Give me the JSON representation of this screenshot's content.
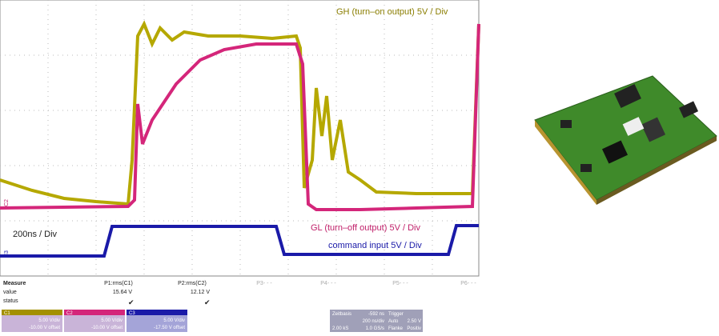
{
  "scope": {
    "labels": {
      "gh": "GH (turn–on output) 5V / Div",
      "gl": "GL (turn–off output) 5V / Div",
      "cmd": "command input 5V / Div",
      "timebase": "200ns / Div",
      "c2": "C2",
      "c3": "C3"
    },
    "measure": {
      "title": "Measure",
      "row_value": "value",
      "row_status": "status",
      "columns": [
        {
          "name": "P1:rms(C1)",
          "value": "15.64 V"
        },
        {
          "name": "P2:rms(C2)",
          "value": "12.12 V"
        },
        {
          "name": "P3- - -"
        },
        {
          "name": "P4- - -"
        },
        {
          "name": "P5- - -"
        },
        {
          "name": "P6- - -"
        }
      ]
    },
    "channels": [
      {
        "name": "C1",
        "scale": "5.00 V/div",
        "offset": "-10.00 V offset"
      },
      {
        "name": "C2",
        "scale": "5.00 V/div",
        "offset": "-10.00 V offset"
      },
      {
        "name": "C3",
        "scale": "5.00 V/div",
        "offset": "-17.50 V offset"
      }
    ],
    "timebase": {
      "title": "Zeitbasis",
      "delay": "-592 ns",
      "rate": "200 ns/div",
      "samples": "2.00 kS",
      "sample_rate": "1.0 GS/s"
    },
    "trigger": {
      "title": "Trigger",
      "mode": "Auto",
      "level": "2.50 V",
      "type": "Flanke",
      "slope": "Positiv"
    }
  }
}
